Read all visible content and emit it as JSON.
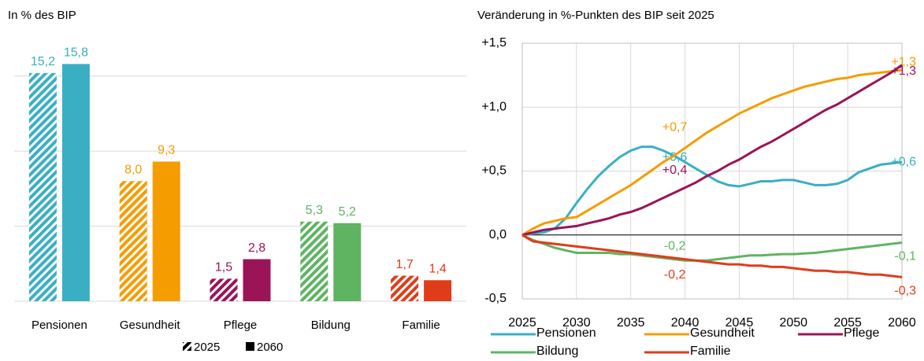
{
  "chart_data": [
    {
      "type": "bar",
      "title": "In % des BIP",
      "categories": [
        "Pensionen",
        "Gesundheit",
        "Pflege",
        "Bildung",
        "Familie"
      ],
      "colors": [
        "#3aafc3",
        "#f59c00",
        "#9b1458",
        "#5fb462",
        "#e03c19"
      ],
      "series": [
        {
          "name": "2025",
          "pattern": "hatched",
          "values": [
            15.2,
            8.0,
            1.5,
            5.3,
            1.7
          ],
          "value_labels": [
            "15,2",
            "8,0",
            "1,5",
            "5,3",
            "1,7"
          ]
        },
        {
          "name": "2060",
          "pattern": "solid",
          "values": [
            15.8,
            9.3,
            2.8,
            5.2,
            1.4
          ],
          "value_labels": [
            "15,8",
            "9,3",
            "2,8",
            "5,2",
            "1,4"
          ]
        }
      ],
      "ylim": [
        0,
        16.5
      ],
      "yticks": [
        0,
        5,
        10,
        15
      ],
      "ytick_labels": false,
      "grid": true,
      "legend": "bottom"
    },
    {
      "type": "line",
      "title": "Veränderung in %-Punkten des BIP seit 2025",
      "x": [
        2025,
        2026,
        2027,
        2028,
        2029,
        2030,
        2031,
        2032,
        2033,
        2034,
        2035,
        2036,
        2037,
        2038,
        2039,
        2040,
        2041,
        2042,
        2043,
        2044,
        2045,
        2046,
        2047,
        2048,
        2049,
        2050,
        2051,
        2052,
        2053,
        2054,
        2055,
        2056,
        2057,
        2058,
        2059,
        2060
      ],
      "xlim": [
        2025,
        2060
      ],
      "xticks": [
        2025,
        2030,
        2035,
        2040,
        2045,
        2050,
        2055,
        2060
      ],
      "ylim": [
        -0.5,
        1.5
      ],
      "yticks": [
        {
          "value": -0.5,
          "label": "-0,5"
        },
        {
          "value": 0,
          "label": "0,0"
        },
        {
          "value": 0.5,
          "label": "+0,5"
        },
        {
          "value": 1.0,
          "label": "+1,0"
        },
        {
          "value": 1.5,
          "label": "+1,5"
        }
      ],
      "grid": true,
      "legend": "bottom",
      "series": [
        {
          "name": "Pensionen",
          "color": "#3aafc3",
          "values": [
            0,
            0.01,
            0.02,
            0.05,
            0.13,
            0.25,
            0.36,
            0.46,
            0.54,
            0.61,
            0.66,
            0.69,
            0.69,
            0.66,
            0.62,
            0.57,
            0.52,
            0.47,
            0.42,
            0.39,
            0.38,
            0.4,
            0.42,
            0.42,
            0.43,
            0.43,
            0.41,
            0.39,
            0.39,
            0.4,
            0.43,
            0.49,
            0.52,
            0.55,
            0.56,
            0.57
          ],
          "labels": [
            {
              "x": 2040,
              "label": "+0,6"
            },
            {
              "x": 2060,
              "label": "+0,6"
            }
          ]
        },
        {
          "name": "Gesundheit",
          "color": "#f59c00",
          "values": [
            0,
            0.05,
            0.09,
            0.11,
            0.13,
            0.14,
            0.19,
            0.24,
            0.29,
            0.34,
            0.39,
            0.45,
            0.51,
            0.57,
            0.62,
            0.68,
            0.74,
            0.8,
            0.85,
            0.9,
            0.95,
            0.99,
            1.03,
            1.07,
            1.1,
            1.13,
            1.16,
            1.18,
            1.2,
            1.22,
            1.23,
            1.25,
            1.26,
            1.27,
            1.28,
            1.29
          ],
          "labels": [
            {
              "x": 2040,
              "label": "+0,7"
            },
            {
              "x": 2060,
              "label": "+1,3"
            }
          ]
        },
        {
          "name": "Pflege",
          "color": "#9b1458",
          "values": [
            0,
            0.02,
            0.04,
            0.05,
            0.06,
            0.07,
            0.09,
            0.11,
            0.13,
            0.16,
            0.18,
            0.21,
            0.25,
            0.29,
            0.33,
            0.37,
            0.41,
            0.46,
            0.5,
            0.55,
            0.59,
            0.64,
            0.69,
            0.73,
            0.78,
            0.83,
            0.88,
            0.93,
            0.98,
            1.02,
            1.07,
            1.12,
            1.17,
            1.22,
            1.27,
            1.33
          ],
          "labels": [
            {
              "x": 2040,
              "label": "+0,4"
            },
            {
              "x": 2060,
              "label": "+1,3"
            }
          ]
        },
        {
          "name": "Bildung",
          "color": "#5fb462",
          "values": [
            0,
            -0.04,
            -0.07,
            -0.1,
            -0.12,
            -0.14,
            -0.14,
            -0.14,
            -0.14,
            -0.15,
            -0.15,
            -0.16,
            -0.17,
            -0.18,
            -0.19,
            -0.2,
            -0.2,
            -0.2,
            -0.19,
            -0.18,
            -0.17,
            -0.16,
            -0.16,
            -0.155,
            -0.15,
            -0.15,
            -0.145,
            -0.14,
            -0.13,
            -0.12,
            -0.11,
            -0.1,
            -0.09,
            -0.08,
            -0.07,
            -0.06
          ],
          "labels": [
            {
              "x": 2040,
              "label": "-0,2"
            },
            {
              "x": 2060,
              "label": "-0,1"
            }
          ]
        },
        {
          "name": "Familie",
          "color": "#e03c19",
          "values": [
            0,
            -0.05,
            -0.06,
            -0.07,
            -0.08,
            -0.09,
            -0.1,
            -0.11,
            -0.12,
            -0.13,
            -0.14,
            -0.15,
            -0.16,
            -0.17,
            -0.18,
            -0.19,
            -0.2,
            -0.21,
            -0.22,
            -0.23,
            -0.23,
            -0.24,
            -0.24,
            -0.25,
            -0.25,
            -0.26,
            -0.27,
            -0.28,
            -0.28,
            -0.29,
            -0.29,
            -0.3,
            -0.31,
            -0.31,
            -0.32,
            -0.33
          ],
          "labels": [
            {
              "x": 2040,
              "label": "-0,2"
            },
            {
              "x": 2060,
              "label": "-0,3"
            }
          ]
        }
      ]
    }
  ]
}
